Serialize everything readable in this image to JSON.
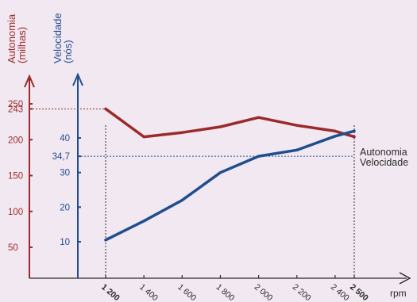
{
  "colors": {
    "background": "#f2e8f1",
    "autonomia": "#9b2a2a",
    "velocidade": "#1f4e8f",
    "axis": "#2a2a2a"
  },
  "chart_data": {
    "type": "line",
    "x": [
      1200,
      1400,
      1600,
      1800,
      2000,
      2200,
      2400,
      2500
    ],
    "x_tick_labels": [
      "1 200",
      "1 400",
      "1 600",
      "1 800",
      "2 000",
      "2 200",
      "2 400",
      "2 500"
    ],
    "x_bold_labels": [
      "1 200",
      "2 500"
    ],
    "xlabel": "rpm",
    "xlim": [
      1200,
      2500
    ],
    "left_axis": {
      "label": "Autonomia\n(milhas)",
      "label_lines": [
        "Autonomia",
        "(milhas)"
      ],
      "ticks": [
        50,
        100,
        150,
        200,
        243,
        250
      ],
      "ylim": [
        0,
        290
      ]
    },
    "right_axis": {
      "label": "Velocidade\n(nós)",
      "label_lines": [
        "Velocidade",
        "(nós)"
      ],
      "ticks": [
        10,
        20,
        30,
        34.7,
        40
      ],
      "tick_labels": [
        "10",
        "20",
        "30",
        "34,7",
        "40"
      ],
      "ylim": [
        0,
        55
      ]
    },
    "series": [
      {
        "name": "Autonomia",
        "axis": "left",
        "values": [
          243,
          204,
          210,
          218,
          231,
          220,
          212,
          204
        ]
      },
      {
        "name": "Velocidade",
        "axis": "right",
        "values": [
          10.5,
          16,
          22,
          30,
          34.7,
          36.5,
          40.5,
          42
        ]
      }
    ],
    "reference_lines": [
      {
        "series": "Autonomia",
        "value": 243,
        "label": "243"
      },
      {
        "series": "Velocidade",
        "value": 34.7,
        "label": "34,7"
      }
    ],
    "grid": false,
    "legend": "right"
  }
}
